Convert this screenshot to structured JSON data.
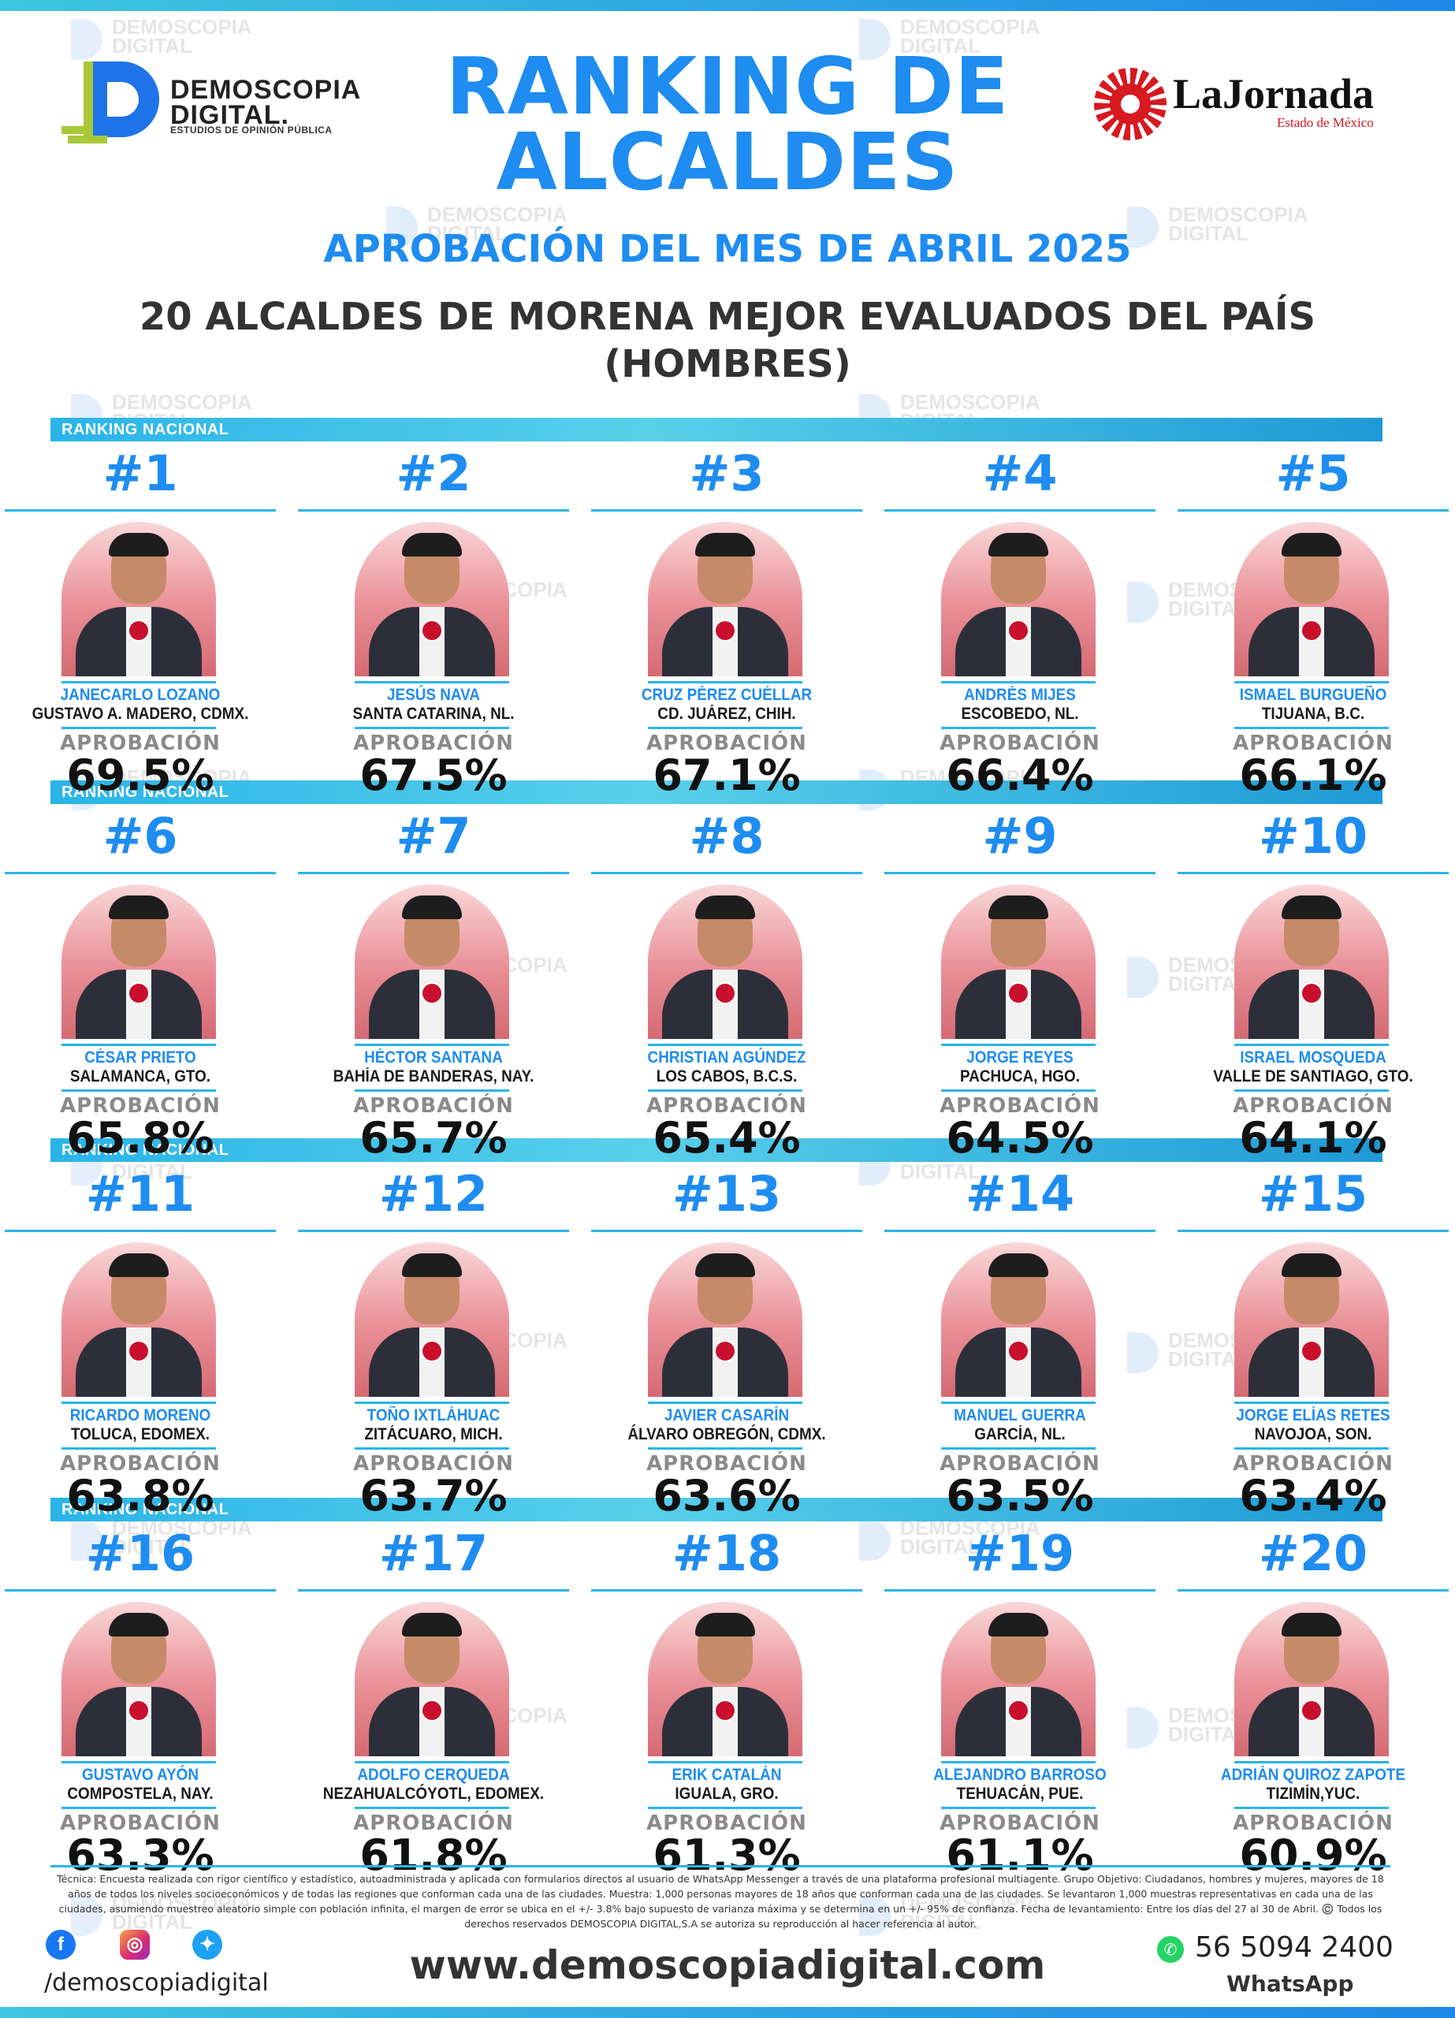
{
  "header": {
    "title": "RANKING DE ALCALDES",
    "title_line1": "RANKING DE",
    "title_line2": "ALCALDES",
    "subtitle": "APROBACIÓN DEL MES DE ABRIL 2025",
    "heading_line1": "20 ALCALDES DE MORENA MEJOR EVALUADOS DEL PAÍS",
    "heading_line2": "(HOMBRES)"
  },
  "logos": {
    "demoscopia_line1": "DEMOSCOPIA",
    "demoscopia_line2": "DIGITAL.",
    "demoscopia_tagline": "ESTUDIOS DE OPINIÓN PÚBLICA",
    "jornada_name": "LaJornada",
    "jornada_sub": "Estado de México"
  },
  "section_label": "RANKING NACIONAL",
  "approval_label": "APROBACIÓN",
  "mayors": [
    {
      "rank": "#1",
      "name": "JANECARLO LOZANO",
      "city": "GUSTAVO A. MADERO, CDMX.",
      "approval": "69.5%"
    },
    {
      "rank": "#2",
      "name": "JESÚS NAVA",
      "city": "SANTA CATARINA, NL.",
      "approval": "67.5%"
    },
    {
      "rank": "#3",
      "name": "CRUZ PÉREZ CUÉLLAR",
      "city": "CD. JUÁREZ, CHIH.",
      "approval": "67.1%"
    },
    {
      "rank": "#4",
      "name": "ANDRÉS MIJES",
      "city": "ESCOBEDO, NL.",
      "approval": "66.4%"
    },
    {
      "rank": "#5",
      "name": "ISMAEL BURGUEÑO",
      "city": "TIJUANA, B.C.",
      "approval": "66.1%"
    },
    {
      "rank": "#6",
      "name": "CÉSAR PRIETO",
      "city": "SALAMANCA, GTO.",
      "approval": "65.8%"
    },
    {
      "rank": "#7",
      "name": "HÉCTOR SANTANA",
      "city": "BAHÍA DE BANDERAS, NAY.",
      "approval": "65.7%"
    },
    {
      "rank": "#8",
      "name": "CHRISTIAN AGÚNDEZ",
      "city": "LOS CABOS, B.C.S.",
      "approval": "65.4%"
    },
    {
      "rank": "#9",
      "name": "JORGE REYES",
      "city": "PACHUCA, HGO.",
      "approval": "64.5%"
    },
    {
      "rank": "#10",
      "name": "ISRAEL MOSQUEDA",
      "city": "VALLE DE SANTIAGO, GTO.",
      "approval": "64.1%"
    },
    {
      "rank": "#11",
      "name": "RICARDO MORENO",
      "city": "TOLUCA, EDOMEX.",
      "approval": "63.8%"
    },
    {
      "rank": "#12",
      "name": "TOÑO IXTLÁHUAC",
      "city": "ZITÁCUARO, MICH.",
      "approval": "63.7%"
    },
    {
      "rank": "#13",
      "name": "JAVIER CASARÍN",
      "city": "ÁLVARO OBREGÓN, CDMX.",
      "approval": "63.6%"
    },
    {
      "rank": "#14",
      "name": "MANUEL GUERRA",
      "city": "GARCÍA, NL.",
      "approval": "63.5%"
    },
    {
      "rank": "#15",
      "name": "JORGE ELÍAS RETES",
      "city": "NAVOJOA, SON.",
      "approval": "63.4%"
    },
    {
      "rank": "#16",
      "name": "GUSTAVO AYÓN",
      "city": "COMPOSTELA, NAY.",
      "approval": "63.3%"
    },
    {
      "rank": "#17",
      "name": "ADOLFO CERQUEDA",
      "city": "NEZAHUALCÓYOTL, EDOMEX.",
      "approval": "61.8%"
    },
    {
      "rank": "#18",
      "name": "ERIK CATALÁN",
      "city": "IGUALA, GRO.",
      "approval": "61.3%"
    },
    {
      "rank": "#19",
      "name": "ALEJANDRO BARROSO",
      "city": "TEHUACÁN, PUE.",
      "approval": "61.1%"
    },
    {
      "rank": "#20",
      "name": "ADRIÁN QUIROZ ZAPOTE",
      "city": "TIZIMÍN,YUC.",
      "approval": "60.9%"
    }
  ],
  "footer": {
    "technical_note": "Técnica: Encuesta realizada con rigor científico y estadístico, autoadministrada y aplicada con formularios directos al usuario de WhatsApp Messenger a través de una plataforma profesional multiagente. Grupo Objetivo: Ciudadanos, hombres y mujeres, mayores de 18 años de todos los niveles socioeconómicos y de todas las regiones que conforman cada una de las ciudades. Muestra: 1,000 personas mayores de 18 años que conforman cada una de las ciudades. Se levantaron 1,000 muestras representativas en cada una de las ciudades, asumiendo muestreo aleatorio simple con población infinita, el margen de error se ubica en el +/- 3.8% bajo supuesto de varianza máxima y se determina en un +/- 95% de confianza. Fecha de levantamiento: Entre los días del 27 al 30 de Abril. ©️ Todos los derechos reservados DEMOSCOPIA DIGITAL,S.A se autoriza su reproducción al hacer referencia al autor.",
    "handle": "/demoscopiadigital",
    "website": "www.demoscopiadigital.com",
    "phone": "56 5094 2400",
    "whatsapp_label": "WhatsApp"
  },
  "colors": {
    "accent_blue": "#1e8cf0",
    "band_cyan": "#2ab4e8",
    "photo_pink": "#e98f96",
    "morena_red": "#c8102e"
  },
  "icons": [
    "facebook-icon",
    "instagram-icon",
    "twitter-icon",
    "whatsapp-icon"
  ]
}
